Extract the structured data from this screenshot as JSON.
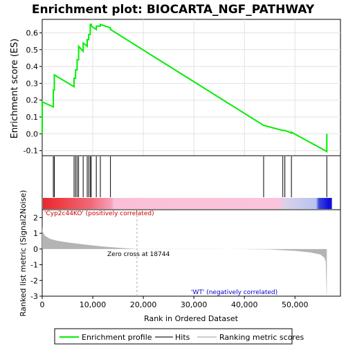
{
  "title": "Enrichment plot: BIOCARTA_NGF_PATHWAY",
  "colors": {
    "enrichment_line": "#00ee00",
    "hits": "#000000",
    "metric_fill": "#b4b4b4",
    "zero_cross_line": "#aaaaaa",
    "positive_label": "#cc0000",
    "negative_label": "#0000cc",
    "legend_hits_swatch": "#777777",
    "legend_metric_swatch": "#cccccc"
  },
  "chart_data": [
    {
      "panel": "enrichment",
      "type": "line",
      "ylabel": "Enrichment score (ES)",
      "ylim": [
        -0.13,
        0.68
      ],
      "yticks": [
        -0.1,
        0.0,
        0.1,
        0.2,
        0.3,
        0.4,
        0.5,
        0.6
      ],
      "ytick_labels": [
        "-0.1",
        "0.0",
        "0.1",
        "0.2",
        "0.3",
        "0.4",
        "0.5",
        "0.6"
      ],
      "xlim": [
        0,
        59000
      ],
      "grid": true,
      "series": [
        {
          "x": [
            0,
            0,
            2200,
            2200,
            2400,
            2400,
            6300,
            6300,
            6600,
            6600,
            6900,
            6900,
            7200,
            7200,
            8100,
            8100,
            8900,
            8900,
            9200,
            9200,
            9500,
            9500,
            9700,
            9700,
            10700,
            10700,
            11500,
            11500,
            13500,
            13500,
            43800,
            47600,
            48000,
            49300,
            49300,
            56300,
            56300
          ],
          "y": [
            0.0,
            0.19,
            0.16,
            0.26,
            0.26,
            0.35,
            0.28,
            0.33,
            0.33,
            0.38,
            0.38,
            0.44,
            0.44,
            0.52,
            0.49,
            0.54,
            0.52,
            0.56,
            0.56,
            0.59,
            0.59,
            0.65,
            0.65,
            0.64,
            0.62,
            0.64,
            0.64,
            0.65,
            0.63,
            0.62,
            0.05,
            0.02,
            0.02,
            0.005,
            0.01,
            -0.105,
            0.0
          ]
        }
      ]
    },
    {
      "panel": "hits",
      "type": "scatter",
      "x": [
        0,
        2200,
        2400,
        6300,
        6600,
        6900,
        7200,
        8100,
        8900,
        9200,
        9500,
        9700,
        10700,
        11500,
        13500,
        43800,
        47600,
        48000,
        49300,
        56300
      ]
    },
    {
      "panel": "ranked_metric",
      "type": "area",
      "xlabel": "Rank in Ordered Dataset",
      "ylabel": "Ranked list metric (Signal2Noise)",
      "xlim": [
        0,
        59000
      ],
      "ylim": [
        -3,
        2.5
      ],
      "yticks": [
        -3,
        -2,
        -1,
        0,
        1,
        2
      ],
      "ytick_labels": [
        "-3",
        "-2",
        "-1",
        "0",
        "1",
        "2"
      ],
      "xticks": [
        0,
        10000,
        20000,
        30000,
        40000,
        50000
      ],
      "xtick_labels": [
        "0",
        "10,000",
        "20,000",
        "30,000",
        "40,000",
        "50,000"
      ],
      "x": [
        0,
        100,
        500,
        1500,
        3000,
        5000,
        8000,
        12000,
        16000,
        18744,
        25000,
        35000,
        45000,
        50000,
        53000,
        55000,
        55800,
        56100,
        56250,
        56300
      ],
      "y": [
        1.45,
        1.1,
        0.85,
        0.65,
        0.52,
        0.42,
        0.3,
        0.16,
        0.06,
        0.0,
        0.0,
        0.0,
        -0.03,
        -0.12,
        -0.22,
        -0.35,
        -0.55,
        -0.8,
        -2.8,
        -2.85
      ],
      "zero_cross": 18744,
      "zero_cross_label": "Zero cross at 18744",
      "positive_label": "'Cyp2c44KO' (positively correlated)",
      "negative_label": "'WT' (negatively correlated)"
    }
  ],
  "legend": {
    "items": [
      "Enrichment profile",
      "Hits",
      "Ranking metric scores"
    ]
  }
}
